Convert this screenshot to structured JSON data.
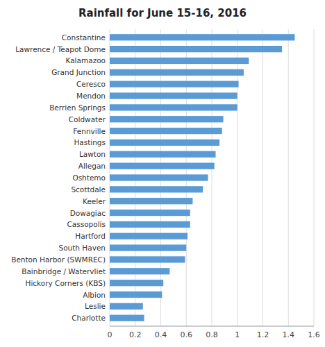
{
  "chart_data": {
    "type": "bar",
    "orientation": "horizontal",
    "title": "Rainfall for June 15-16, 2016",
    "categories": [
      "Charlotte",
      "Leslie",
      "Albion",
      "Hickory Corners (KBS)",
      "Bainbridge / Watervliet",
      "Benton Harbor (SWMREC)",
      "South Haven",
      "Hartford",
      "Cassopolis",
      "Dowagiac",
      "Keeler",
      "Scottdale",
      "Oshtemo",
      "Allegan",
      "Lawton",
      "Hastings",
      "Fennville",
      "Coldwater",
      "Berrien Springs",
      "Mendon",
      "Ceresco",
      "Grand Junction",
      "Kalamazoo",
      "Lawrence / Teapot Dome",
      "Constantine"
    ],
    "values": [
      0.27,
      0.26,
      0.41,
      0.42,
      0.47,
      0.59,
      0.6,
      0.61,
      0.63,
      0.63,
      0.65,
      0.73,
      0.77,
      0.82,
      0.83,
      0.86,
      0.88,
      0.89,
      1.0,
      1.0,
      1.01,
      1.05,
      1.09,
      1.35,
      1.45
    ],
    "color": "#5b9bd5",
    "xlim": [
      0,
      1.6
    ],
    "xticks": [
      0,
      0.2,
      0.4,
      0.6,
      0.8,
      1,
      1.2,
      1.4,
      1.6
    ],
    "grid": true
  }
}
